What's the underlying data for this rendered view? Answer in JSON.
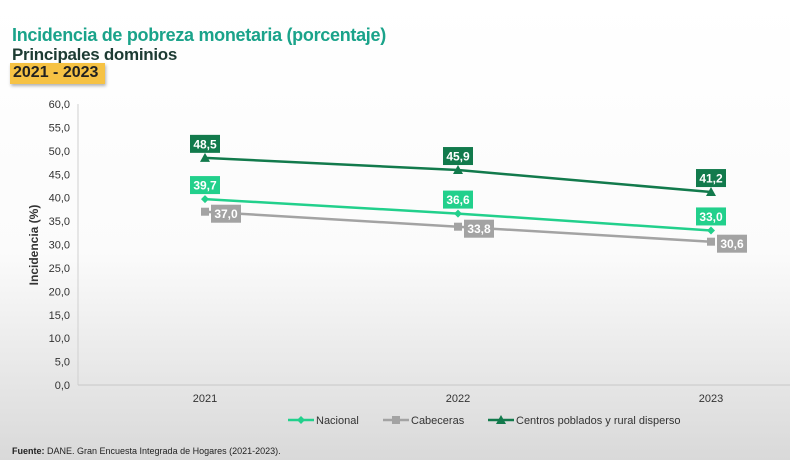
{
  "header": {
    "title": "Incidencia de pobreza monetaria (porcentaje)",
    "subtitle": "Principales dominios",
    "period": "2021 - 2023"
  },
  "source": {
    "label": "Fuente:",
    "text": " DANE. Gran Encuesta Integrada de Hogares (2021-2023)."
  },
  "chart_data": {
    "type": "line",
    "title": "Incidencia de pobreza monetaria (porcentaje)",
    "xlabel": "",
    "ylabel": "Incidencia (%)",
    "ylim": [
      0,
      60
    ],
    "yticks": [
      "0,0",
      "5,0",
      "10,0",
      "15,0",
      "20,0",
      "25,0",
      "30,0",
      "35,0",
      "40,0",
      "45,0",
      "50,0",
      "55,0",
      "60,0"
    ],
    "categories": [
      "2021",
      "2022",
      "2023"
    ],
    "grid": false,
    "legend": "bottom",
    "series": [
      {
        "name": "Nacional",
        "values": [
          39.7,
          36.6,
          33.0
        ],
        "labels": [
          "39,7",
          "36,6",
          "33,0"
        ],
        "color": "#22d08c",
        "marker": "diamond"
      },
      {
        "name": "Cabeceras",
        "values": [
          37.0,
          33.8,
          30.6
        ],
        "labels": [
          "37,0",
          "33,8",
          "30,6"
        ],
        "color": "#a3a3a3",
        "marker": "square"
      },
      {
        "name": "Centros poblados y rural disperso",
        "values": [
          48.5,
          45.9,
          41.2
        ],
        "labels": [
          "48,5",
          "45,9",
          "41,2"
        ],
        "color": "#127a4c",
        "marker": "triangle"
      }
    ]
  }
}
